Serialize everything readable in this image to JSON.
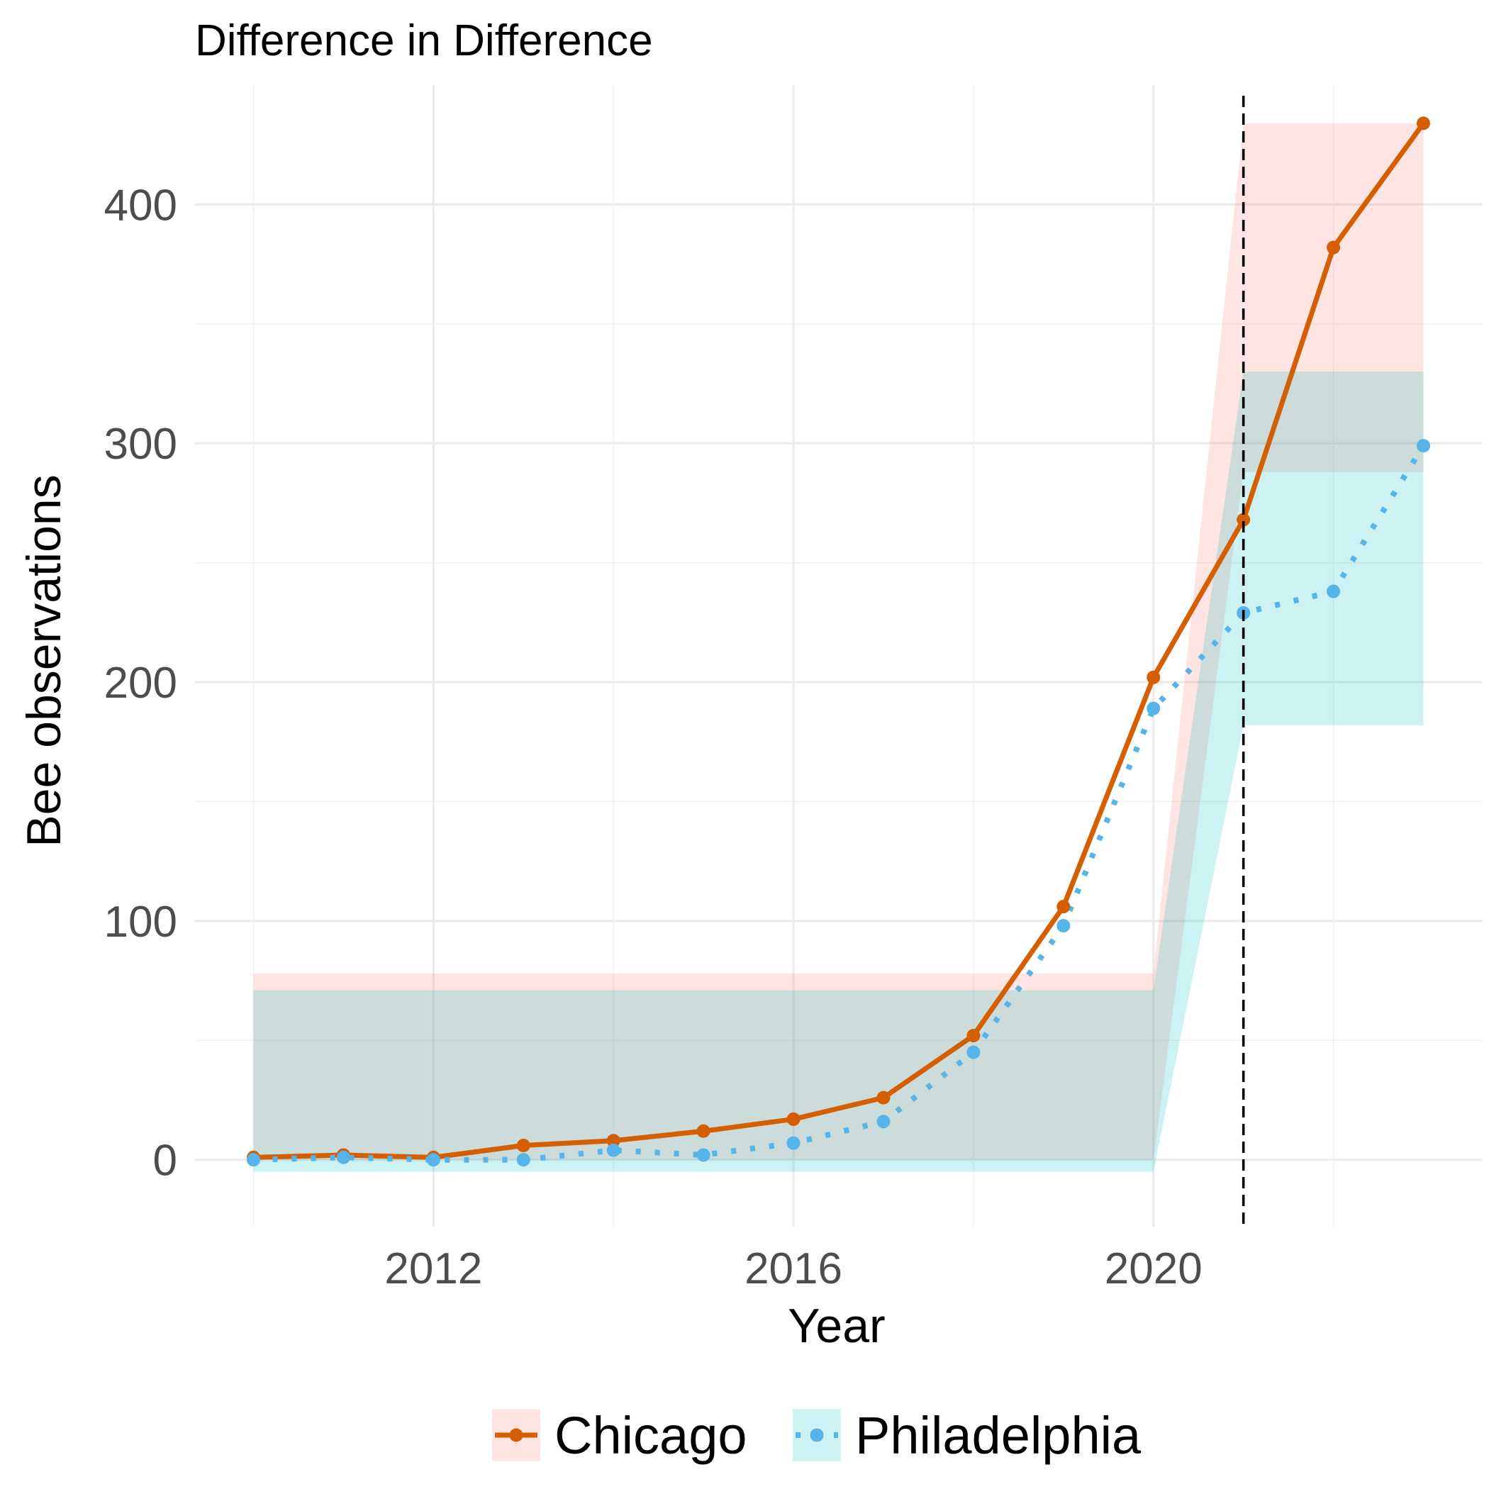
{
  "chart_data": {
    "type": "line",
    "title": "Difference in Difference",
    "xlabel": "Year",
    "ylabel": "Bee observations",
    "x": [
      2010,
      2011,
      2012,
      2013,
      2014,
      2015,
      2016,
      2017,
      2018,
      2019,
      2020,
      2021,
      2022,
      2023
    ],
    "xlim": [
      2009.35,
      2023.65
    ],
    "ylim": [
      -28,
      450
    ],
    "x_ticks": [
      2012,
      2016,
      2020
    ],
    "x_tick_labels": [
      "2012",
      "2016",
      "2020"
    ],
    "y_ticks": [
      0,
      100,
      200,
      300,
      400
    ],
    "y_tick_labels": [
      "0",
      "100",
      "200",
      "300",
      "400"
    ],
    "grid": true,
    "legend_position": "bottom",
    "intervention_year": 2021,
    "series": [
      {
        "name": "Chicago",
        "color": "#d55e00",
        "line_style": "solid",
        "values": [
          1,
          2,
          1,
          6,
          8,
          12,
          17,
          26,
          52,
          106,
          202,
          268,
          382,
          434
        ],
        "band": {
          "color": "#f8766d",
          "pre": {
            "x": [
              2010,
              2020
            ],
            "lower": 0,
            "upper": 78
          },
          "post": {
            "x": [
              2021,
              2023
            ],
            "lower": 288,
            "upper": 434
          }
        }
      },
      {
        "name": "Philadelphia",
        "color": "#56b4e9",
        "line_style": "dotted",
        "values": [
          0,
          1,
          0,
          0,
          4,
          2,
          7,
          16,
          45,
          98,
          189,
          229,
          238,
          299
        ],
        "band": {
          "color": "#00bfc4",
          "pre": {
            "x": [
              2010,
              2020
            ],
            "lower": -5,
            "upper": 71
          },
          "post": {
            "x": [
              2021,
              2023
            ],
            "lower": 182,
            "upper": 330
          }
        }
      }
    ]
  }
}
